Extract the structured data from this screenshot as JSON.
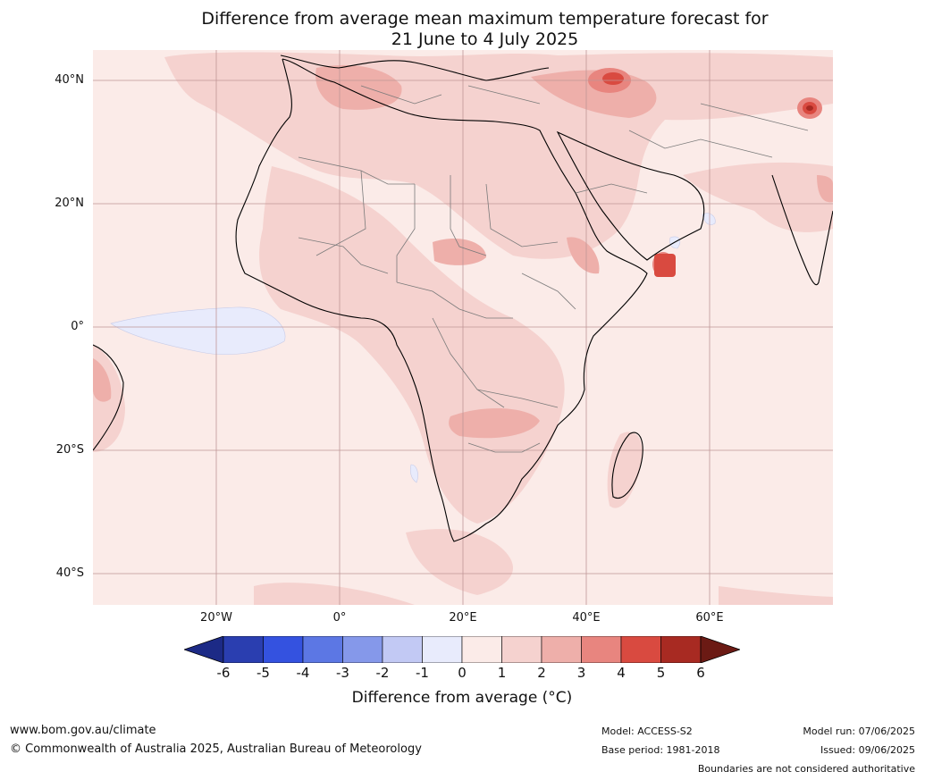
{
  "title_line1": "Difference from average mean maximum temperature forecast for",
  "title_line2": "21 June to 4 July 2025",
  "lat_labels": [
    "40°N",
    "20°N",
    "0°",
    "20°S",
    "40°S"
  ],
  "lon_labels": [
    "20°W",
    "0°",
    "20°E",
    "40°E",
    "60°E"
  ],
  "colorbar": {
    "ticks": [
      "-6",
      "-5",
      "-4",
      "-3",
      "-2",
      "-1",
      "0",
      "1",
      "2",
      "3",
      "4",
      "5",
      "6"
    ],
    "colors": [
      "#1c2a86",
      "#2a3eb0",
      "#3452e0",
      "#5c77e4",
      "#8598ea",
      "#c2c9f4",
      "#e8ebfc",
      "#fbebe8",
      "#f5d2cf",
      "#eeafaa",
      "#e8857f",
      "#d94a40",
      "#a82a22",
      "#6b1a14"
    ],
    "label": "Difference from average (°C)"
  },
  "footer": {
    "website": "www.bom.gov.au/climate",
    "copyright": "© Commonwealth of Australia 2025, Australian Bureau of Meteorology",
    "model": "Model: ACCESS-S2",
    "base_period": "Base period: 1981-2018",
    "model_run": "Model run: 07/06/2025",
    "issued": "Issued: 09/06/2025",
    "disclaimer": "Boundaries are not considered authoritative"
  }
}
